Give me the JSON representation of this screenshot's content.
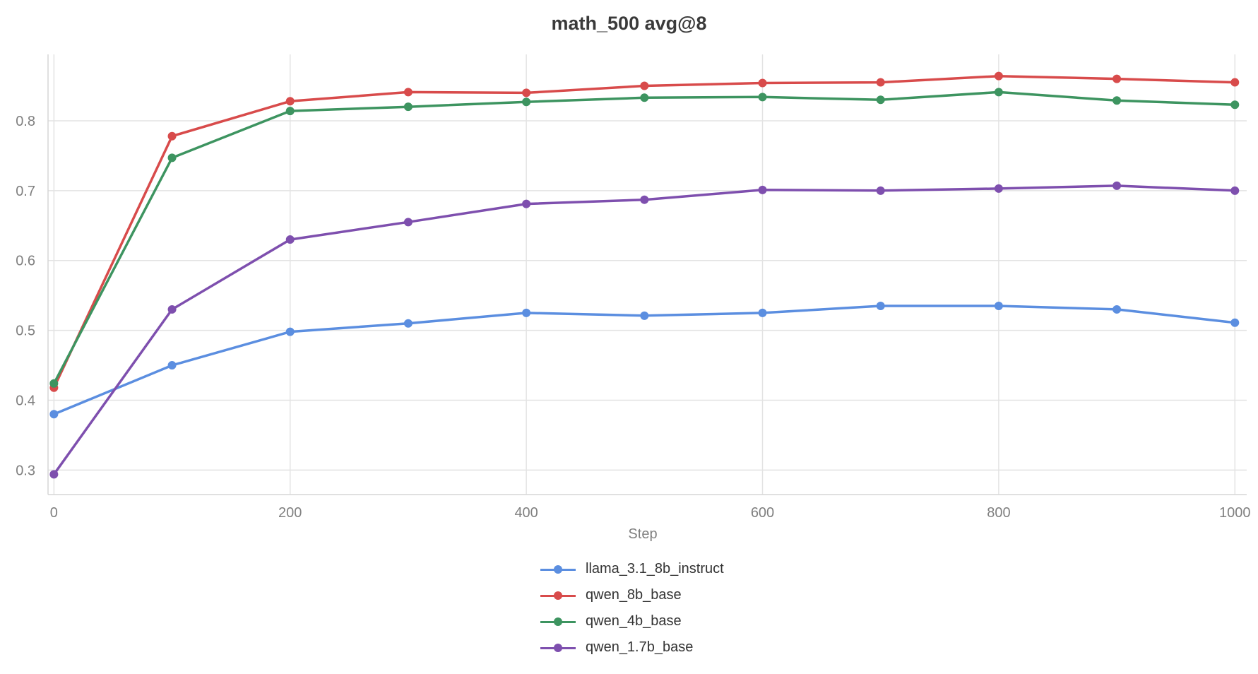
{
  "chart_data": {
    "type": "line",
    "title": "math_500 avg@8",
    "xlabel": "Step",
    "ylabel": "",
    "xlim": [
      -5,
      1010
    ],
    "ylim": [
      0.265,
      0.895
    ],
    "xticks": [
      0,
      200,
      400,
      600,
      800,
      1000
    ],
    "yticks": [
      0.3,
      0.4,
      0.5,
      0.6,
      0.7,
      0.8
    ],
    "ytick_labels": [
      "0.3",
      "0.4",
      "0.5",
      "0.6",
      "0.7",
      "0.8"
    ],
    "grid": true,
    "legend_position": "bottom",
    "x": [
      0,
      100,
      200,
      300,
      400,
      500,
      600,
      700,
      800,
      900,
      1000
    ],
    "series": [
      {
        "name": "llama_3.1_8b_instruct",
        "color": "#5b8ee0",
        "values": [
          0.38,
          0.45,
          0.498,
          0.51,
          0.525,
          0.521,
          0.525,
          0.535,
          0.535,
          0.53,
          0.511
        ]
      },
      {
        "name": "qwen_8b_base",
        "color": "#d84b4b",
        "values": [
          0.418,
          0.778,
          0.828,
          0.841,
          0.84,
          0.85,
          0.854,
          0.855,
          0.864,
          0.86,
          0.855
        ]
      },
      {
        "name": "qwen_4b_base",
        "color": "#3d9460",
        "values": [
          0.424,
          0.747,
          0.814,
          0.82,
          0.827,
          0.833,
          0.834,
          0.83,
          0.841,
          0.829,
          0.823
        ]
      },
      {
        "name": "qwen_1.7b_base",
        "color": "#7e4fae",
        "values": [
          0.294,
          0.53,
          0.63,
          0.655,
          0.681,
          0.687,
          0.701,
          0.7,
          0.703,
          0.707,
          0.7
        ]
      }
    ]
  }
}
